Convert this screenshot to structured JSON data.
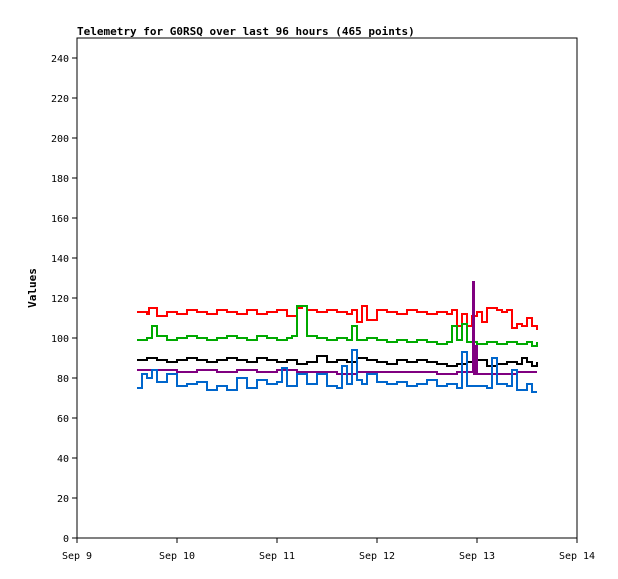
{
  "chart_data": {
    "type": "line",
    "title": "Telemetry for G0RSQ over last 96 hours (465 points)",
    "ylabel": "Values",
    "xlabel": "",
    "ylim": [
      0,
      250
    ],
    "xlim": [
      0,
      5
    ],
    "yticks": [
      0,
      20,
      40,
      60,
      80,
      100,
      120,
      140,
      160,
      180,
      200,
      220,
      240
    ],
    "xticks": [
      {
        "x": 0,
        "label": "Sep 9"
      },
      {
        "x": 1,
        "label": "Sep 10"
      },
      {
        "x": 2,
        "label": "Sep 11"
      },
      {
        "x": 3,
        "label": "Sep 12"
      },
      {
        "x": 4,
        "label": "Sep 13"
      },
      {
        "x": 5,
        "label": "Sep 14"
      }
    ],
    "grid": false,
    "legend": "none",
    "series": [
      {
        "color": "#ff0000",
        "x": [
          0.6,
          0.7,
          0.72,
          0.8,
          0.9,
          1.0,
          1.1,
          1.2,
          1.3,
          1.4,
          1.5,
          1.6,
          1.7,
          1.8,
          1.9,
          2.0,
          2.1,
          2.2,
          2.25,
          2.3,
          2.4,
          2.5,
          2.6,
          2.7,
          2.75,
          2.8,
          2.85,
          2.9,
          3.0,
          3.1,
          3.2,
          3.3,
          3.4,
          3.5,
          3.6,
          3.7,
          3.75,
          3.8,
          3.85,
          3.9,
          3.95,
          4.0,
          4.05,
          4.1,
          4.2,
          4.25,
          4.3,
          4.35,
          4.4,
          4.45,
          4.5,
          4.55,
          4.6
        ],
        "y": [
          113,
          112,
          115,
          111,
          113,
          112,
          114,
          113,
          112,
          114,
          113,
          112,
          114,
          112,
          113,
          114,
          111,
          115,
          116,
          114,
          113,
          114,
          113,
          112,
          114,
          108,
          116,
          109,
          114,
          113,
          112,
          114,
          113,
          112,
          113,
          112,
          114,
          106,
          112,
          106,
          111,
          113,
          108,
          115,
          114,
          113,
          114,
          105,
          107,
          106,
          110,
          106,
          104
        ]
      },
      {
        "color": "#00aa00",
        "x": [
          0.6,
          0.7,
          0.75,
          0.8,
          0.9,
          1.0,
          1.1,
          1.2,
          1.3,
          1.4,
          1.5,
          1.6,
          1.7,
          1.8,
          1.9,
          2.0,
          2.1,
          2.15,
          2.2,
          2.3,
          2.4,
          2.5,
          2.6,
          2.7,
          2.75,
          2.8,
          2.9,
          3.0,
          3.1,
          3.2,
          3.3,
          3.4,
          3.5,
          3.6,
          3.7,
          3.75,
          3.8,
          3.85,
          3.9,
          4.0,
          4.1,
          4.2,
          4.3,
          4.4,
          4.5,
          4.55,
          4.6
        ],
        "y": [
          99,
          100,
          106,
          101,
          99,
          100,
          101,
          100,
          99,
          100,
          101,
          100,
          99,
          101,
          100,
          99,
          100,
          101,
          116,
          101,
          100,
          99,
          100,
          99,
          106,
          99,
          100,
          99,
          98,
          99,
          98,
          99,
          98,
          97,
          98,
          106,
          99,
          107,
          98,
          97,
          98,
          97,
          98,
          97,
          98,
          96,
          98
        ]
      },
      {
        "color": "#000000",
        "x": [
          0.6,
          0.7,
          0.8,
          0.9,
          1.0,
          1.1,
          1.2,
          1.3,
          1.4,
          1.5,
          1.6,
          1.7,
          1.8,
          1.9,
          2.0,
          2.1,
          2.2,
          2.3,
          2.4,
          2.5,
          2.6,
          2.7,
          2.8,
          2.9,
          3.0,
          3.1,
          3.2,
          3.3,
          3.4,
          3.5,
          3.6,
          3.7,
          3.8,
          3.9,
          4.0,
          4.1,
          4.2,
          4.3,
          4.4,
          4.45,
          4.5,
          4.55,
          4.6
        ],
        "y": [
          89,
          90,
          89,
          88,
          89,
          90,
          89,
          88,
          89,
          90,
          89,
          88,
          90,
          89,
          88,
          89,
          87,
          88,
          91,
          88,
          89,
          88,
          90,
          89,
          88,
          87,
          89,
          88,
          89,
          88,
          87,
          86,
          87,
          88,
          89,
          86,
          87,
          88,
          87,
          90,
          88,
          86,
          88
        ]
      },
      {
        "color": "#800080",
        "x": [
          0.6,
          0.8,
          1.0,
          1.2,
          1.4,
          1.6,
          1.8,
          2.0,
          2.2,
          2.4,
          2.6,
          2.8,
          3.0,
          3.2,
          3.4,
          3.6,
          3.8,
          3.95,
          3.96,
          3.97,
          3.98,
          4.0,
          4.2,
          4.4,
          4.6
        ],
        "y": [
          84,
          84,
          83,
          84,
          83,
          84,
          83,
          84,
          83,
          83,
          82,
          83,
          83,
          83,
          83,
          82,
          83,
          83,
          128,
          82,
          96,
          82,
          82,
          83,
          83
        ]
      },
      {
        "color": "#0066cc",
        "x": [
          0.6,
          0.65,
          0.7,
          0.75,
          0.8,
          0.9,
          1.0,
          1.1,
          1.2,
          1.3,
          1.4,
          1.5,
          1.6,
          1.7,
          1.8,
          1.9,
          2.0,
          2.05,
          2.1,
          2.2,
          2.3,
          2.4,
          2.5,
          2.6,
          2.65,
          2.7,
          2.75,
          2.8,
          2.85,
          2.9,
          3.0,
          3.1,
          3.2,
          3.3,
          3.4,
          3.5,
          3.6,
          3.7,
          3.8,
          3.85,
          3.9,
          4.0,
          4.1,
          4.15,
          4.2,
          4.3,
          4.35,
          4.4,
          4.5,
          4.55,
          4.6
        ],
        "y": [
          75,
          82,
          80,
          84,
          78,
          82,
          76,
          77,
          78,
          74,
          76,
          74,
          80,
          75,
          79,
          77,
          78,
          85,
          76,
          82,
          77,
          82,
          76,
          75,
          86,
          77,
          94,
          79,
          77,
          82,
          78,
          77,
          78,
          76,
          77,
          79,
          76,
          77,
          75,
          93,
          76,
          76,
          75,
          90,
          77,
          76,
          84,
          74,
          77,
          73,
          73
        ]
      }
    ]
  }
}
